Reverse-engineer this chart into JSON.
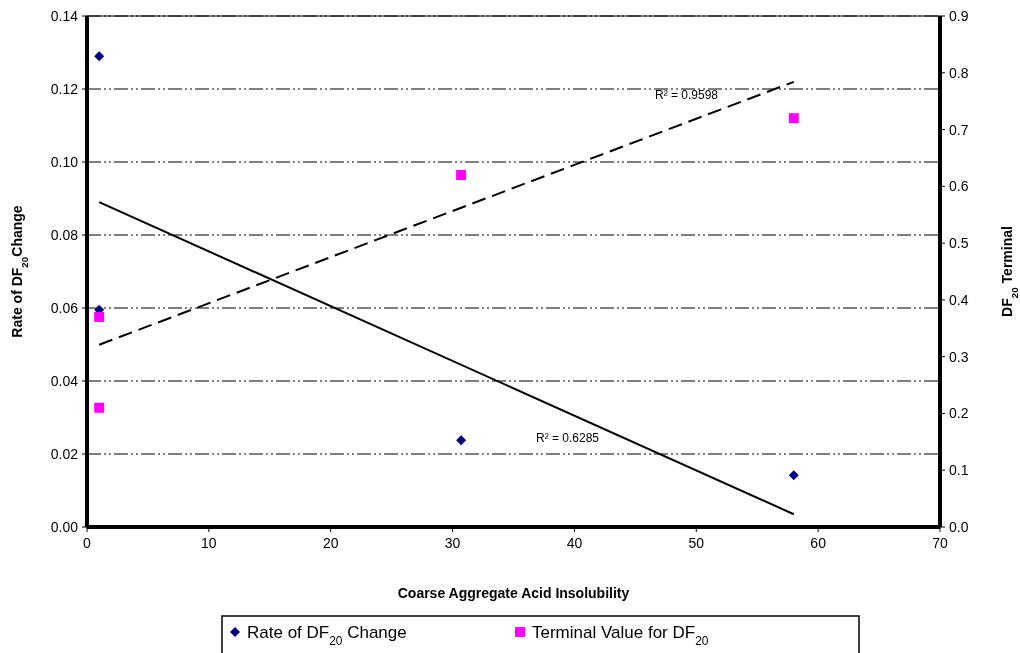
{
  "chart_data": {
    "type": "scatter",
    "xlabel": "Coarse Aggregate Acid Insolubility",
    "ylabel": "Rate of DF$_{20}$Change",
    "y2label": "DF$_{20}$ Terminal",
    "xlim": [
      0,
      70
    ],
    "xticks": [
      0,
      10,
      20,
      30,
      40,
      50,
      60,
      70
    ],
    "ylim": [
      0,
      0.14
    ],
    "yticks": [
      {
        "value": 0,
        "label": "0.00"
      },
      {
        "value": 0.02,
        "label": "0.02"
      },
      {
        "value": 0.04,
        "label": "0.04"
      },
      {
        "value": 0.06,
        "label": "0.06"
      },
      {
        "value": 0.08,
        "label": "0.08"
      },
      {
        "value": 0.1,
        "label": "0.10"
      },
      {
        "value": 0.12,
        "label": "0.12"
      },
      {
        "value": 0.14,
        "label": "0.14"
      }
    ],
    "y2lim": [
      0,
      0.9
    ],
    "y2ticks": [
      {
        "value": 0,
        "label": "0.0"
      },
      0.1,
      0.2,
      0.3,
      0.4,
      0.5,
      0.6,
      0.7,
      0.8,
      0.9
    ],
    "grid": "y",
    "legend": "bottom",
    "series": [
      {
        "name": "Rate of DF$_{20}$ Change",
        "marker": "diamond",
        "color": "#000080",
        "x": [
          1,
          1,
          30.7,
          58
        ],
        "values": [
          0.129,
          0.0595,
          0.0238,
          0.0142
        ]
      },
      {
        "name": "Terminal Value for DF$_{20}$",
        "marker": "square",
        "color": "#ff00ff",
        "axis": "y2",
        "x": [
          1,
          1,
          30.7,
          58
        ],
        "values": [
          0.37,
          0.21,
          0.62,
          0.72
        ]
      },
      {
        "type": "line",
        "marker": "none",
        "line_style": "solid",
        "color": "#000000",
        "x": [
          1,
          58
        ],
        "values": [
          0.089,
          0.0035
        ]
      },
      {
        "type": "line",
        "marker": "none",
        "line_style": "dashed",
        "color": "#000000",
        "axis": "y2",
        "x": [
          1,
          58
        ],
        "values": [
          0.321,
          0.784
        ]
      }
    ],
    "annotations": [
      "R² = 0.9598",
      "R² = 0.6285"
    ]
  }
}
